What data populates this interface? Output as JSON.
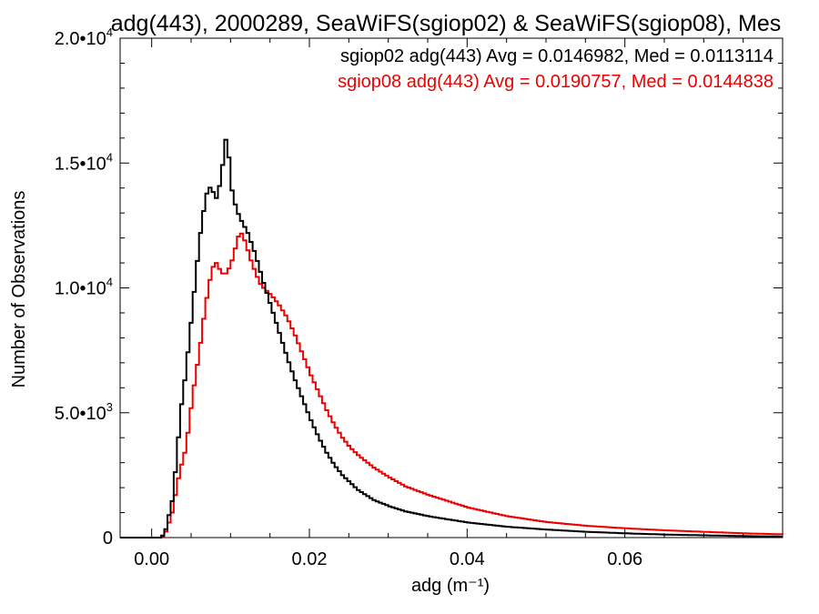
{
  "chart_data": {
    "type": "line",
    "title": "adg(443), 2000289, SeaWiFS(sgiop02) & SeaWiFS(sgiop08), Mes",
    "xlabel": "adg (m⁻¹)",
    "ylabel": "Number of Observations",
    "xlim": [
      -0.004,
      0.08
    ],
    "ylim": [
      0,
      20000
    ],
    "x_ticks": [
      {
        "value": 0.0,
        "label": "0.00"
      },
      {
        "value": 0.02,
        "label": "0.02"
      },
      {
        "value": 0.04,
        "label": "0.04"
      },
      {
        "value": 0.06,
        "label": "0.06"
      }
    ],
    "y_ticks": [
      {
        "value": 0,
        "label": "0",
        "exp": ""
      },
      {
        "value": 5000,
        "label": "5.0•10",
        "exp": "3"
      },
      {
        "value": 10000,
        "label": "1.0•10",
        "exp": "4"
      },
      {
        "value": 15000,
        "label": "1.5•10",
        "exp": "4"
      },
      {
        "value": 20000,
        "label": "2.0•10",
        "exp": "4"
      }
    ],
    "grid": false,
    "legend_position": "top-right",
    "series": [
      {
        "name": "sgiop02",
        "annotation": "sgiop02 adg(443) Avg = 0.0146982, Med = 0.0113114",
        "color": "#000000",
        "points": [
          [
            -0.004,
            0
          ],
          [
            0.001,
            0
          ],
          [
            0.0015,
            200
          ],
          [
            0.002,
            900
          ],
          [
            0.0025,
            1600
          ],
          [
            0.003,
            3300
          ],
          [
            0.0035,
            5100
          ],
          [
            0.004,
            6300
          ],
          [
            0.0045,
            7700
          ],
          [
            0.005,
            9200
          ],
          [
            0.0055,
            10800
          ],
          [
            0.006,
            12200
          ],
          [
            0.0065,
            13300
          ],
          [
            0.007,
            14100
          ],
          [
            0.0075,
            13900
          ],
          [
            0.008,
            13600
          ],
          [
            0.0085,
            14200
          ],
          [
            0.009,
            15400
          ],
          [
            0.0093,
            16200
          ],
          [
            0.0097,
            14900
          ],
          [
            0.01,
            13900
          ],
          [
            0.0105,
            13200
          ],
          [
            0.011,
            12800
          ],
          [
            0.0115,
            12500
          ],
          [
            0.012,
            12200
          ],
          [
            0.013,
            11300
          ],
          [
            0.014,
            10200
          ],
          [
            0.015,
            9200
          ],
          [
            0.016,
            8200
          ],
          [
            0.017,
            7200
          ],
          [
            0.018,
            6300
          ],
          [
            0.019,
            5500
          ],
          [
            0.02,
            4700
          ],
          [
            0.021,
            4000
          ],
          [
            0.022,
            3400
          ],
          [
            0.023,
            2900
          ],
          [
            0.024,
            2500
          ],
          [
            0.026,
            1900
          ],
          [
            0.028,
            1500
          ],
          [
            0.03,
            1250
          ],
          [
            0.032,
            1050
          ],
          [
            0.035,
            850
          ],
          [
            0.04,
            600
          ],
          [
            0.045,
            430
          ],
          [
            0.05,
            320
          ],
          [
            0.055,
            230
          ],
          [
            0.06,
            170
          ],
          [
            0.065,
            120
          ],
          [
            0.07,
            90
          ],
          [
            0.075,
            60
          ],
          [
            0.08,
            40
          ]
        ]
      },
      {
        "name": "sgiop08",
        "annotation": "sgiop08 adg(443) Avg = 0.0190757, Med = 0.0144838",
        "color": "#ee0000",
        "points": [
          [
            -0.004,
            0
          ],
          [
            0.001,
            0
          ],
          [
            0.0015,
            150
          ],
          [
            0.002,
            600
          ],
          [
            0.0025,
            1100
          ],
          [
            0.003,
            2100
          ],
          [
            0.0035,
            2800
          ],
          [
            0.004,
            3400
          ],
          [
            0.0045,
            4400
          ],
          [
            0.005,
            5700
          ],
          [
            0.0055,
            6700
          ],
          [
            0.006,
            7800
          ],
          [
            0.0065,
            9000
          ],
          [
            0.007,
            10000
          ],
          [
            0.0075,
            10800
          ],
          [
            0.008,
            11000
          ],
          [
            0.0085,
            10700
          ],
          [
            0.009,
            10500
          ],
          [
            0.0095,
            10700
          ],
          [
            0.01,
            11100
          ],
          [
            0.0105,
            11700
          ],
          [
            0.011,
            12300
          ],
          [
            0.0115,
            12000
          ],
          [
            0.012,
            11500
          ],
          [
            0.0125,
            11000
          ],
          [
            0.013,
            10600
          ],
          [
            0.0135,
            10200
          ],
          [
            0.014,
            10000
          ],
          [
            0.015,
            9700
          ],
          [
            0.016,
            9300
          ],
          [
            0.017,
            8800
          ],
          [
            0.018,
            8100
          ],
          [
            0.019,
            7300
          ],
          [
            0.02,
            6500
          ],
          [
            0.021,
            5800
          ],
          [
            0.022,
            5100
          ],
          [
            0.023,
            4500
          ],
          [
            0.024,
            4000
          ],
          [
            0.025,
            3600
          ],
          [
            0.026,
            3300
          ],
          [
            0.028,
            2800
          ],
          [
            0.03,
            2400
          ],
          [
            0.032,
            2050
          ],
          [
            0.035,
            1700
          ],
          [
            0.04,
            1200
          ],
          [
            0.045,
            850
          ],
          [
            0.05,
            620
          ],
          [
            0.055,
            470
          ],
          [
            0.06,
            370
          ],
          [
            0.065,
            290
          ],
          [
            0.07,
            230
          ],
          [
            0.075,
            170
          ],
          [
            0.08,
            130
          ]
        ]
      }
    ]
  }
}
